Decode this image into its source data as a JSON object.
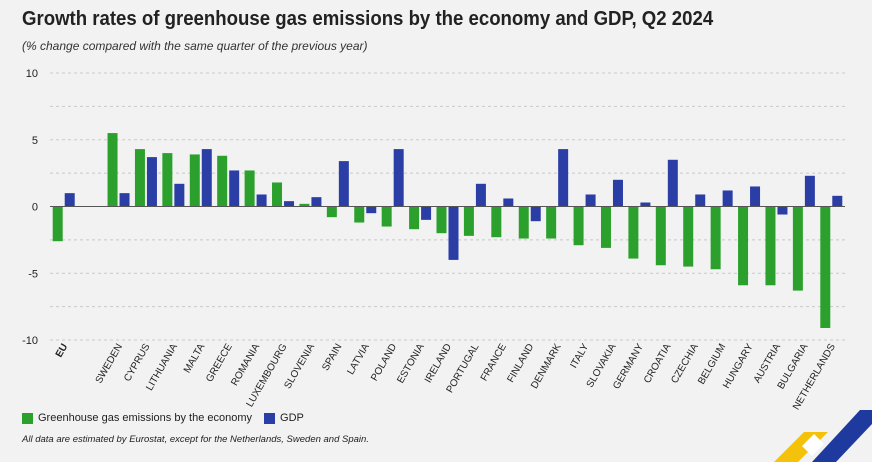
{
  "chart_data": {
    "type": "bar",
    "title": "Growth rates of greenhouse gas emissions by the economy and GDP, Q2 2024",
    "subtitle": "(% change compared with the same quarter of the previous year)",
    "xlabel": "",
    "ylabel": "",
    "ylim": [
      -10,
      10
    ],
    "yticks": [
      10,
      5,
      0,
      -5,
      -10
    ],
    "grid": true,
    "legend_position": "bottom-left",
    "categories": [
      "EU",
      "",
      "SWEDEN",
      "CYPRUS",
      "LITHUANIA",
      "MALTA",
      "GREECE",
      "ROMANIA",
      "LUXEMBOURG",
      "SLOVENIA",
      "SPAIN",
      "LATVIA",
      "POLAND",
      "ESTONIA",
      "IRELAND",
      "PORTUGAL",
      "FRANCE",
      "FINLAND",
      "DENMARK",
      "ITALY",
      "SLOVAKIA",
      "GERMANY",
      "CROATIA",
      "CZECHIA",
      "BELGIUM",
      "HUNGARY",
      "AUSTRIA",
      "BULGARIA",
      "NETHERLANDS"
    ],
    "series": [
      {
        "name": "Greenhouse gas emissions by the economy",
        "color": "#2ca02c",
        "values": [
          -2.6,
          null,
          5.5,
          4.3,
          4.0,
          3.9,
          3.8,
          2.7,
          1.8,
          0.2,
          -0.8,
          -1.2,
          -1.5,
          -1.7,
          -2.0,
          -2.2,
          -2.3,
          -2.4,
          -2.4,
          -2.9,
          -3.1,
          -3.9,
          -4.4,
          -4.5,
          -4.7,
          -5.9,
          -5.9,
          -6.3,
          -9.1
        ]
      },
      {
        "name": "GDP",
        "color": "#2b3ea6",
        "values": [
          1.0,
          null,
          1.0,
          3.7,
          1.7,
          4.3,
          2.7,
          0.9,
          0.4,
          0.7,
          3.4,
          -0.5,
          4.3,
          -1.0,
          -4.0,
          1.7,
          0.6,
          -1.1,
          4.3,
          0.9,
          2.0,
          0.3,
          3.5,
          0.9,
          1.2,
          1.5,
          -0.6,
          2.3,
          0.8
        ]
      }
    ]
  },
  "footnote": "All data are estimated by Eurostat, except for the Netherlands, Sweden and Spain."
}
